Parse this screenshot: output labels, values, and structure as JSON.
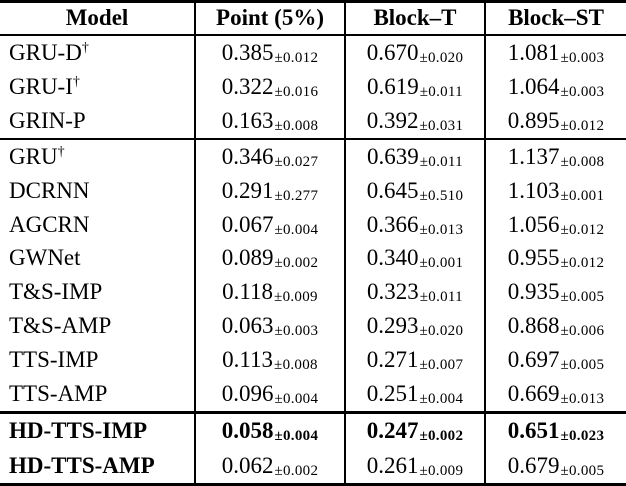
{
  "table": {
    "columns": [
      "Model",
      "Point (5%)",
      "Block–T",
      "Block–ST"
    ],
    "plus_minus_symbol": "±",
    "dagger_symbol": "†",
    "groups": [
      {
        "rows": [
          {
            "model": "GRU-D",
            "dagger": true,
            "bold_model": false,
            "bold_values": false,
            "values": [
              {
                "mean": "0.385",
                "std": "0.012"
              },
              {
                "mean": "0.670",
                "std": "0.020"
              },
              {
                "mean": "1.081",
                "std": "0.003"
              }
            ]
          },
          {
            "model": "GRU-I",
            "dagger": true,
            "bold_model": false,
            "bold_values": false,
            "values": [
              {
                "mean": "0.322",
                "std": "0.016"
              },
              {
                "mean": "0.619",
                "std": "0.011"
              },
              {
                "mean": "1.064",
                "std": "0.003"
              }
            ]
          },
          {
            "model": "GRIN-P",
            "dagger": false,
            "bold_model": false,
            "bold_values": false,
            "values": [
              {
                "mean": "0.163",
                "std": "0.008"
              },
              {
                "mean": "0.392",
                "std": "0.031"
              },
              {
                "mean": "0.895",
                "std": "0.012"
              }
            ]
          }
        ]
      },
      {
        "rows": [
          {
            "model": "GRU",
            "dagger": true,
            "bold_model": false,
            "bold_values": false,
            "values": [
              {
                "mean": "0.346",
                "std": "0.027"
              },
              {
                "mean": "0.639",
                "std": "0.011"
              },
              {
                "mean": "1.137",
                "std": "0.008"
              }
            ]
          },
          {
            "model": "DCRNN",
            "dagger": false,
            "bold_model": false,
            "bold_values": false,
            "values": [
              {
                "mean": "0.291",
                "std": "0.277"
              },
              {
                "mean": "0.645",
                "std": "0.510"
              },
              {
                "mean": "1.103",
                "std": "0.001"
              }
            ]
          },
          {
            "model": "AGCRN",
            "dagger": false,
            "bold_model": false,
            "bold_values": false,
            "values": [
              {
                "mean": "0.067",
                "std": "0.004"
              },
              {
                "mean": "0.366",
                "std": "0.013"
              },
              {
                "mean": "1.056",
                "std": "0.012"
              }
            ]
          },
          {
            "model": "GWNet",
            "dagger": false,
            "bold_model": false,
            "bold_values": false,
            "values": [
              {
                "mean": "0.089",
                "std": "0.002"
              },
              {
                "mean": "0.340",
                "std": "0.001"
              },
              {
                "mean": "0.955",
                "std": "0.012"
              }
            ]
          },
          {
            "model": "T&S-IMP",
            "dagger": false,
            "bold_model": false,
            "bold_values": false,
            "values": [
              {
                "mean": "0.118",
                "std": "0.009"
              },
              {
                "mean": "0.323",
                "std": "0.011"
              },
              {
                "mean": "0.935",
                "std": "0.005"
              }
            ]
          },
          {
            "model": "T&S-AMP",
            "dagger": false,
            "bold_model": false,
            "bold_values": false,
            "values": [
              {
                "mean": "0.063",
                "std": "0.003"
              },
              {
                "mean": "0.293",
                "std": "0.020"
              },
              {
                "mean": "0.868",
                "std": "0.006"
              }
            ]
          },
          {
            "model": "TTS-IMP",
            "dagger": false,
            "bold_model": false,
            "bold_values": false,
            "values": [
              {
                "mean": "0.113",
                "std": "0.008"
              },
              {
                "mean": "0.271",
                "std": "0.007"
              },
              {
                "mean": "0.697",
                "std": "0.005"
              }
            ]
          },
          {
            "model": "TTS-AMP",
            "dagger": false,
            "bold_model": false,
            "bold_values": false,
            "values": [
              {
                "mean": "0.096",
                "std": "0.004"
              },
              {
                "mean": "0.251",
                "std": "0.004"
              },
              {
                "mean": "0.669",
                "std": "0.013"
              }
            ]
          }
        ]
      },
      {
        "rows": [
          {
            "model": "HD-TTS-IMP",
            "dagger": false,
            "bold_model": true,
            "bold_values": true,
            "values": [
              {
                "mean": "0.058",
                "std": "0.004"
              },
              {
                "mean": "0.247",
                "std": "0.002"
              },
              {
                "mean": "0.651",
                "std": "0.023"
              }
            ]
          },
          {
            "model": "HD-TTS-AMP",
            "dagger": false,
            "bold_model": true,
            "bold_values": false,
            "values": [
              {
                "mean": "0.062",
                "std": "0.002"
              },
              {
                "mean": "0.261",
                "std": "0.009"
              },
              {
                "mean": "0.679",
                "std": "0.005"
              }
            ]
          }
        ]
      }
    ]
  }
}
